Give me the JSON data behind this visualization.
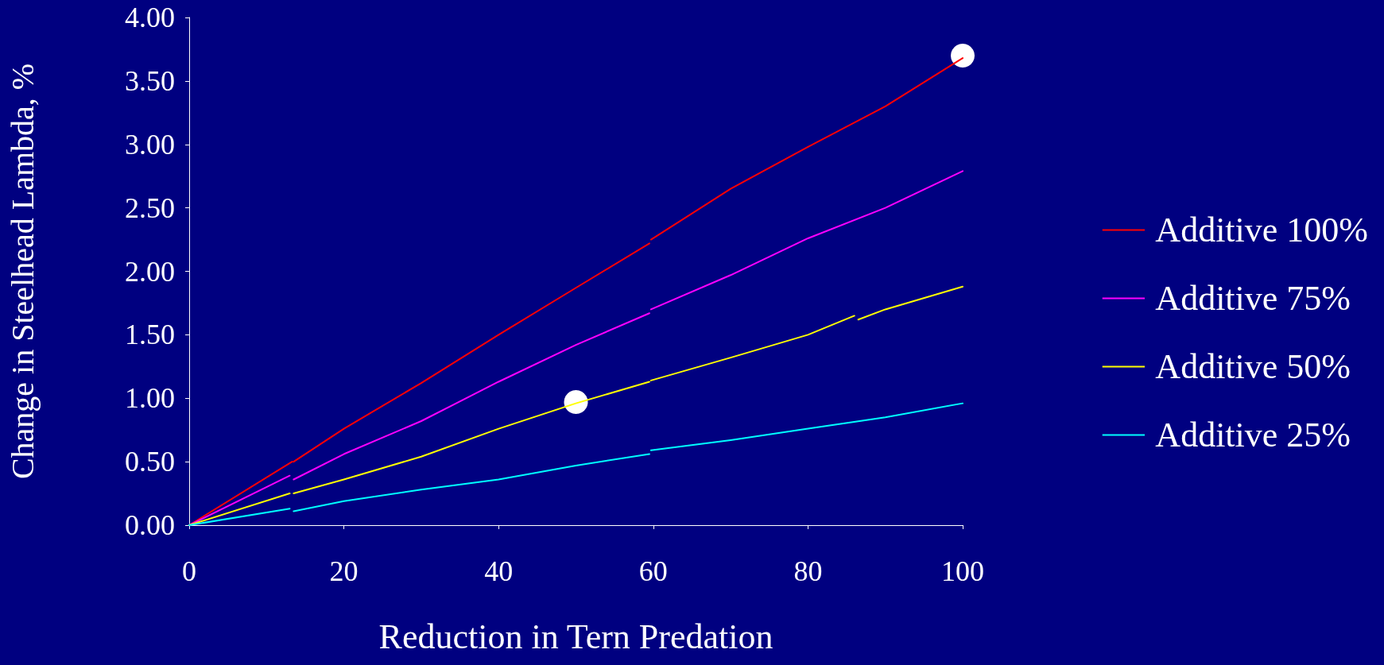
{
  "chart_data": {
    "type": "line",
    "xlabel": "Reduction in Tern Predation",
    "ylabel": "Change in Steelhead Lambda, %",
    "xlim": [
      0,
      100
    ],
    "xticks": [
      0,
      20,
      40,
      60,
      80,
      100
    ],
    "ylim": [
      0,
      4
    ],
    "yticks": [
      {
        "value": 0,
        "label": "0.00"
      },
      {
        "value": 0.5,
        "label": "0.50"
      },
      {
        "value": 1,
        "label": "1.00"
      },
      {
        "value": 1.5,
        "label": "1.50"
      },
      {
        "value": 2,
        "label": "2.00"
      },
      {
        "value": 2.5,
        "label": "2.50"
      },
      {
        "value": 3,
        "label": "3.00"
      },
      {
        "value": 3.5,
        "label": "3.50"
      },
      {
        "value": 4,
        "label": "4.00"
      }
    ],
    "grid": false,
    "legend": "right",
    "marker": "none",
    "line_style": "solid",
    "series": [
      {
        "name": "Additive 100%",
        "color": "#ff0000",
        "x": [
          0,
          13.3,
          13.4,
          13.5,
          20,
          30,
          40,
          50,
          59.5,
          59.6,
          59.7,
          70,
          80,
          90,
          100
        ],
        "values": [
          0,
          0.5,
          null,
          0.5,
          0.76,
          1.12,
          1.5,
          1.87,
          2.22,
          null,
          2.25,
          2.65,
          2.98,
          3.3,
          3.68
        ]
      },
      {
        "name": "Additive 75%",
        "color": "#ff00ff",
        "x": [
          0,
          13,
          13.2,
          13.5,
          20,
          30,
          40,
          50,
          59.5,
          59.6,
          59.7,
          70,
          80,
          90,
          100
        ],
        "values": [
          0,
          0.39,
          null,
          0.36,
          0.56,
          0.82,
          1.13,
          1.42,
          1.67,
          null,
          1.7,
          1.97,
          2.26,
          2.5,
          2.79
        ]
      },
      {
        "name": "Additive 50%",
        "color": "#ffff00",
        "x": [
          0,
          13,
          13.2,
          13.5,
          20,
          30,
          40,
          50,
          59.5,
          59.6,
          59.7,
          70,
          80,
          86,
          86.2,
          86.5,
          90,
          100
        ],
        "values": [
          0,
          0.25,
          null,
          0.25,
          0.36,
          0.54,
          0.76,
          0.96,
          1.13,
          null,
          1.14,
          1.32,
          1.5,
          1.65,
          null,
          1.62,
          1.7,
          1.88
        ]
      },
      {
        "name": "Additive 25%",
        "color": "#00ffff",
        "x": [
          0,
          13,
          13.2,
          13.5,
          20,
          30,
          40,
          50,
          59.5,
          59.6,
          59.7,
          70,
          80,
          90,
          100
        ],
        "values": [
          0,
          0.13,
          null,
          0.11,
          0.19,
          0.28,
          0.36,
          0.47,
          0.56,
          null,
          0.59,
          0.67,
          0.76,
          0.85,
          0.96
        ]
      },
      {
        "type": "scatter",
        "color": "#ffffff",
        "marker": "circle",
        "x": [
          50,
          100
        ],
        "values": [
          0.97,
          3.7
        ]
      }
    ]
  }
}
